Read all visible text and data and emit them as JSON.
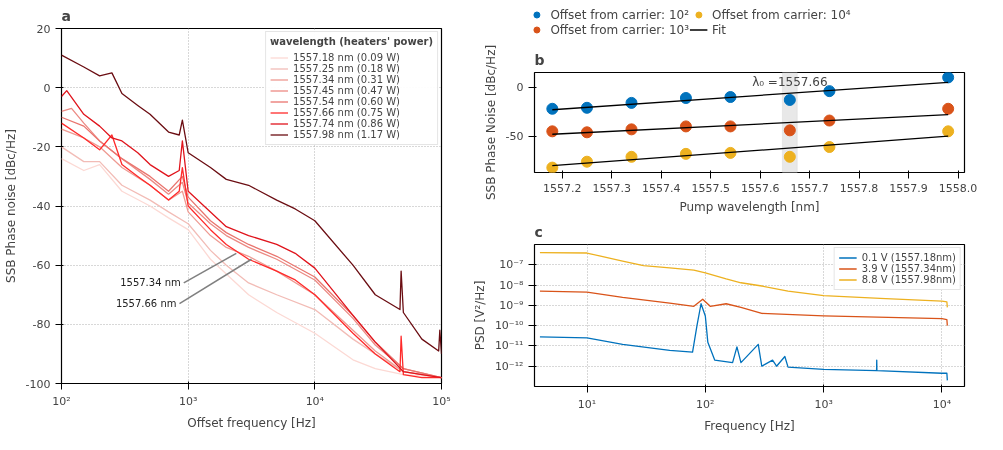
{
  "chart_data": [
    {
      "type": "line",
      "title": "a",
      "xlabel": "Offset frequency [Hz]",
      "ylabel": "SSB Phase noise [dBc/Hz]",
      "legend_title": "wavelength (heaters' power)",
      "log": "x",
      "grid": true,
      "legend": "top right",
      "xlim": [
        100,
        100000
      ],
      "ylim": [
        -100,
        20
      ],
      "xticks": [
        {
          "value": 100,
          "label": "10²"
        },
        {
          "value": 1000,
          "label": "10³"
        },
        {
          "value": 10000,
          "label": "10⁴"
        },
        {
          "value": 100000,
          "label": "10⁵"
        }
      ],
      "yticks": [
        -100,
        -80,
        -60,
        -40,
        -20,
        0,
        20
      ],
      "annotations": [
        {
          "text": "1557.34 nm",
          "x": 2400,
          "y": -56
        },
        {
          "text": "1557.66 nm",
          "x": 3160,
          "y": -58
        }
      ],
      "series": [
        {
          "name": "1557.18 nm (0.09 W)",
          "color": "#fcd9d4",
          "x": [
            100,
            150,
            200,
            300,
            500,
            700,
            1000,
            1500,
            2000,
            3000,
            5000,
            10000,
            20000,
            30000,
            50000,
            100000
          ],
          "values": [
            -24,
            -28,
            -26,
            -35,
            -40,
            -44,
            -48,
            -58,
            -63,
            -70,
            -76,
            -83,
            -92,
            -95,
            -97,
            -98
          ]
        },
        {
          "name": "1557.25 nm (0.18 W)",
          "color": "#f2bcb6",
          "x": [
            100,
            150,
            200,
            300,
            500,
            700,
            1000,
            1500,
            2000,
            3000,
            5000,
            10000,
            20000,
            30000,
            50000,
            100000
          ],
          "values": [
            -20,
            -25,
            -25,
            -33,
            -38,
            -42,
            -46,
            -55,
            -60,
            -66,
            -70,
            -75,
            -85,
            -90,
            -96,
            -98
          ]
        },
        {
          "name": "1557.34 nm (0.31 W)",
          "color": "#ee9a92",
          "x": [
            100,
            150,
            200,
            300,
            500,
            700,
            900,
            1000,
            1500,
            2000,
            3000,
            5000,
            10000,
            20000,
            30000,
            50000,
            100000
          ],
          "values": [
            -14,
            -17,
            -20,
            -27,
            -33,
            -38,
            -35,
            -42,
            -50,
            -54,
            -57,
            -62,
            -70,
            -82,
            -89,
            -96,
            -98
          ]
        },
        {
          "name": "1557.45 nm (0.47 W)",
          "color": "#ec8a84",
          "x": [
            100,
            120,
            150,
            200,
            300,
            500,
            700,
            900,
            1000,
            1500,
            2000,
            3000,
            5000,
            10000,
            20000,
            30000,
            50000,
            100000
          ],
          "values": [
            -8,
            -7,
            -12,
            -18,
            -24,
            -31,
            -36,
            -32,
            -39,
            -46,
            -50,
            -54,
            -58,
            -65,
            -78,
            -87,
            -95,
            -98
          ]
        },
        {
          "name": "1557.54 nm (0.60 W)",
          "color": "#e9756f",
          "x": [
            100,
            150,
            200,
            300,
            500,
            700,
            900,
            1000,
            1500,
            2000,
            3000,
            5000,
            10000,
            20000,
            30000,
            50000,
            100000
          ],
          "values": [
            -10,
            -13,
            -18,
            -24,
            -30,
            -35,
            -30,
            -37,
            -45,
            -49,
            -53,
            -57,
            -64,
            -77,
            -86,
            -95,
            -98
          ]
        },
        {
          "name": "1557.66 nm (0.75 W)",
          "color": "#ff2a2a",
          "x": [
            100,
            150,
            200,
            250,
            300,
            400,
            500,
            700,
            850,
            900,
            1000,
            1500,
            2000,
            3000,
            5000,
            7000,
            10000,
            20000,
            30000,
            47000,
            48000,
            50000,
            70000,
            100000
          ],
          "values": [
            -12,
            -17,
            -21,
            -16,
            -26,
            -30,
            -33,
            -38,
            -35,
            -27,
            -40,
            -48,
            -53,
            -58,
            -62,
            -65,
            -70,
            -83,
            -90,
            -96,
            -84,
            -97,
            -98,
            -98
          ]
        },
        {
          "name": "1557.74 nm (0.86 W)",
          "color": "#e0141c",
          "x": [
            100,
            110,
            150,
            200,
            250,
            300,
            400,
            500,
            700,
            850,
            900,
            1000,
            1500,
            2000,
            3000,
            5000,
            7000,
            10000,
            20000,
            30000,
            50000,
            70000,
            100000
          ],
          "values": [
            -3,
            -1,
            -9,
            -13,
            -17,
            -18,
            -22,
            -26,
            -30,
            -28,
            -18,
            -35,
            -42,
            -47,
            -50,
            -53,
            -56,
            -61,
            -77,
            -86,
            -96,
            -97,
            -98
          ]
        },
        {
          "name": "1557.98 nm (1.17 W)",
          "color": "#6b0d12",
          "x": [
            100,
            150,
            200,
            250,
            300,
            400,
            500,
            700,
            850,
            900,
            1000,
            1500,
            2000,
            3000,
            5000,
            7000,
            10000,
            20000,
            30000,
            47000,
            48000,
            50000,
            70000,
            95000,
            97000,
            100000
          ],
          "values": [
            11,
            7,
            4,
            5,
            -2,
            -6,
            -9,
            -15,
            -16,
            -11,
            -22,
            -27,
            -31,
            -33,
            -38,
            -41,
            -45,
            -60,
            -70,
            -75,
            -62,
            -76,
            -85,
            -89,
            -82,
            -90
          ]
        }
      ]
    },
    {
      "type": "scatter",
      "title": "b",
      "xlabel": "Pump wavelength [nm]",
      "ylabel": "SSB Phase Noise [dBc/Hz]",
      "legend": "top",
      "marker": "circle",
      "xlim": [
        1557.144,
        1558.013
      ],
      "ylim": [
        -87,
        15
      ],
      "xticks": [
        1557.2,
        1557.3,
        1557.4,
        1557.5,
        1557.6,
        1557.7,
        1557.8,
        1557.9,
        {
          "value": 1558,
          "label": "1558.0"
        }
      ],
      "yticks": [
        -50,
        0
      ],
      "bands": [
        {
          "axis": "x",
          "from": 1557.645,
          "to": 1557.675,
          "label": "λ₀ =1557.66",
          "color": "#e8e8e8"
        }
      ],
      "x": [
        1557.18,
        1557.25,
        1557.34,
        1557.45,
        1557.54,
        1557.66,
        1557.74,
        1557.98
      ],
      "series": [
        {
          "name": "Offset from carrier: 10²",
          "color": "#0072bd",
          "values": [
            -22,
            -21,
            -16,
            -11,
            -10,
            -13,
            -4,
            10
          ]
        },
        {
          "name": "Offset from carrier: 10³",
          "color": "#d95319",
          "values": [
            -45,
            -46,
            -43,
            -40,
            -40,
            -44,
            -34,
            -22
          ]
        },
        {
          "name": "Offset from carrier: 10⁴",
          "color": "#edb120",
          "values": [
            -82,
            -76,
            -71,
            -68,
            -67,
            -71,
            -61,
            -45
          ]
        },
        {
          "name": "Fit",
          "type": "line",
          "marker": "none",
          "color": "#000000",
          "x": [
            1557.18,
            1557.98
          ],
          "values": [
            -23,
            5
          ]
        },
        {
          "type": "line",
          "marker": "none",
          "color": "#000000",
          "x": [
            1557.18,
            1557.98
          ],
          "values": [
            -48,
            -28
          ]
        },
        {
          "type": "line",
          "marker": "none",
          "color": "#000000",
          "x": [
            1557.18,
            1557.98
          ],
          "values": [
            -80,
            -50
          ]
        }
      ]
    },
    {
      "type": "line",
      "title": "c",
      "xlabel": "Frequency [Hz]",
      "ylabel": "PSD [V²/Hz]",
      "log": "xy",
      "grid": true,
      "legend": "top right",
      "xlim": [
        3.6,
        15500
      ],
      "ylim": [
        1e-13,
        1e-06
      ],
      "xticks": [
        {
          "value": 10,
          "label": "10¹"
        },
        {
          "value": 100,
          "label": "10²"
        },
        {
          "value": 1000,
          "label": "10³"
        },
        {
          "value": 10000,
          "label": "10⁴"
        }
      ],
      "yticks": [
        {
          "value": 1e-12,
          "label": "10⁻¹²"
        },
        {
          "value": 1e-11,
          "label": "10⁻¹¹"
        },
        {
          "value": 1e-10,
          "label": "10⁻¹⁰"
        },
        {
          "value": 1e-09,
          "label": "10⁻⁹"
        },
        {
          "value": 1e-08,
          "label": "10⁻⁸"
        },
        {
          "value": 1e-07,
          "label": "10⁻⁷"
        }
      ],
      "series": [
        {
          "name": "0.1 V (1557.18nm)",
          "color": "#0072bd",
          "x": [
            4,
            10,
            20,
            50,
            78,
            85,
            92,
            100,
            105,
            120,
            170,
            185,
            200,
            280,
            300,
            370,
            400,
            470,
            500,
            1000,
            2800,
            2810,
            2820,
            10000,
            11000,
            11100
          ],
          "values": [
            2.8e-11,
            2.5e-11,
            1.2e-11,
            6e-12,
            5e-12,
            1e-10,
            1.2e-09,
            3e-10,
            1.5e-11,
            2e-12,
            1.5e-12,
            9e-12,
            1.5e-12,
            1.2e-11,
            1e-12,
            2e-12,
            1e-12,
            3e-12,
            9e-13,
            7e-13,
            6e-13,
            2e-12,
            6e-13,
            4.5e-13,
            4.5e-13,
            2e-13
          ]
        },
        {
          "name": "3.9 V (1557.34nm)",
          "color": "#d95319",
          "x": [
            4,
            10,
            20,
            50,
            80,
            95,
            110,
            150,
            200,
            300,
            1000,
            10000,
            11000,
            11100
          ],
          "values": [
            5e-09,
            4.5e-09,
            2.5e-09,
            1.3e-09,
            9e-10,
            2e-09,
            9e-10,
            1.2e-09,
            8e-10,
            4e-10,
            3e-10,
            2.2e-10,
            2e-10,
            1e-10
          ]
        },
        {
          "name": "8.8 V (1557.98nm)",
          "color": "#edb120",
          "x": [
            4,
            10,
            20,
            30,
            50,
            80,
            100,
            150,
            200,
            300,
            500,
            1000,
            3000,
            10000,
            11000,
            11100
          ],
          "values": [
            4e-07,
            3.8e-07,
            1.5e-07,
            9e-08,
            7e-08,
            5.5e-08,
            4e-08,
            2e-08,
            1.3e-08,
            9e-09,
            5e-09,
            3e-09,
            2.2e-09,
            1.6e-09,
            1.5e-09,
            8e-10
          ]
        }
      ]
    }
  ]
}
